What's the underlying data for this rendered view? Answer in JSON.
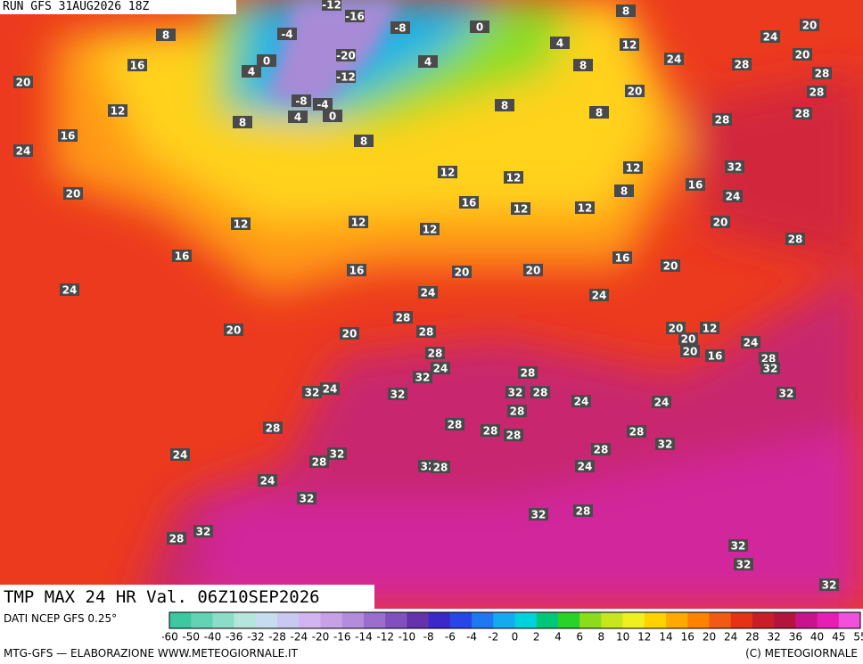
{
  "header": {
    "run": "RUN GFS 31AUG2026 18Z"
  },
  "map": {
    "labels": [
      -12,
      -16,
      -4,
      -8,
      -20,
      -12,
      -8,
      -4,
      4,
      0,
      0,
      4,
      4,
      0,
      4,
      8,
      12,
      8,
      8,
      8,
      20,
      24,
      28,
      24,
      20,
      20,
      28,
      28,
      28,
      28,
      32,
      16,
      24,
      20,
      28,
      12,
      8,
      12,
      16,
      20,
      20,
      20,
      12,
      16,
      12,
      12,
      12,
      12,
      16,
      12,
      16,
      20,
      24,
      16,
      12,
      16,
      20,
      8,
      8,
      8,
      24,
      20,
      20,
      24,
      28,
      28,
      28,
      24,
      32,
      32,
      24,
      32,
      28,
      24,
      28,
      32,
      24,
      32,
      28,
      32,
      32,
      28,
      28,
      28,
      28,
      28,
      32,
      28,
      28,
      24,
      24,
      24,
      28,
      32,
      28,
      24,
      32,
      28,
      20,
      20,
      12,
      20,
      16,
      24,
      28,
      32,
      32,
      32,
      32,
      32
    ]
  },
  "footer": {
    "title": "TMP MAX 24 HR Val. 06Z10SEP2026",
    "source": "DATI NCEP GFS 0.25°",
    "credit": "MTG-GFS — ELABORAZIONE WWW.METEOGIORNALE.IT",
    "copyright": "(C) METEOGIORNALE"
  },
  "legend": {
    "ticks": [
      -60,
      -50,
      -40,
      -36,
      -32,
      -28,
      -24,
      -20,
      -16,
      -14,
      -12,
      -10,
      -8,
      -6,
      -4,
      -2,
      0,
      2,
      4,
      6,
      8,
      10,
      12,
      14,
      16,
      20,
      24,
      28,
      32,
      36,
      40,
      45,
      55
    ],
    "colors": [
      "#3cc8a0",
      "#64d2b4",
      "#8cdcc8",
      "#b4e6dc",
      "#c8dcf0",
      "#c8c8f0",
      "#d2b4f0",
      "#c8a0e6",
      "#b48cdc",
      "#9b6ecd",
      "#8250be",
      "#6432aa",
      "#3c28c8",
      "#2846e6",
      "#1e78f0",
      "#14aaf0",
      "#00d2dc",
      "#00c878",
      "#28d228",
      "#8cdc1e",
      "#c8e61e",
      "#f0f01e",
      "#ffd200",
      "#ffaa00",
      "#ff8200",
      "#f05a14",
      "#e63214",
      "#c81e28",
      "#b4143c",
      "#c8148c",
      "#e61eb4",
      "#f050dc"
    ]
  }
}
